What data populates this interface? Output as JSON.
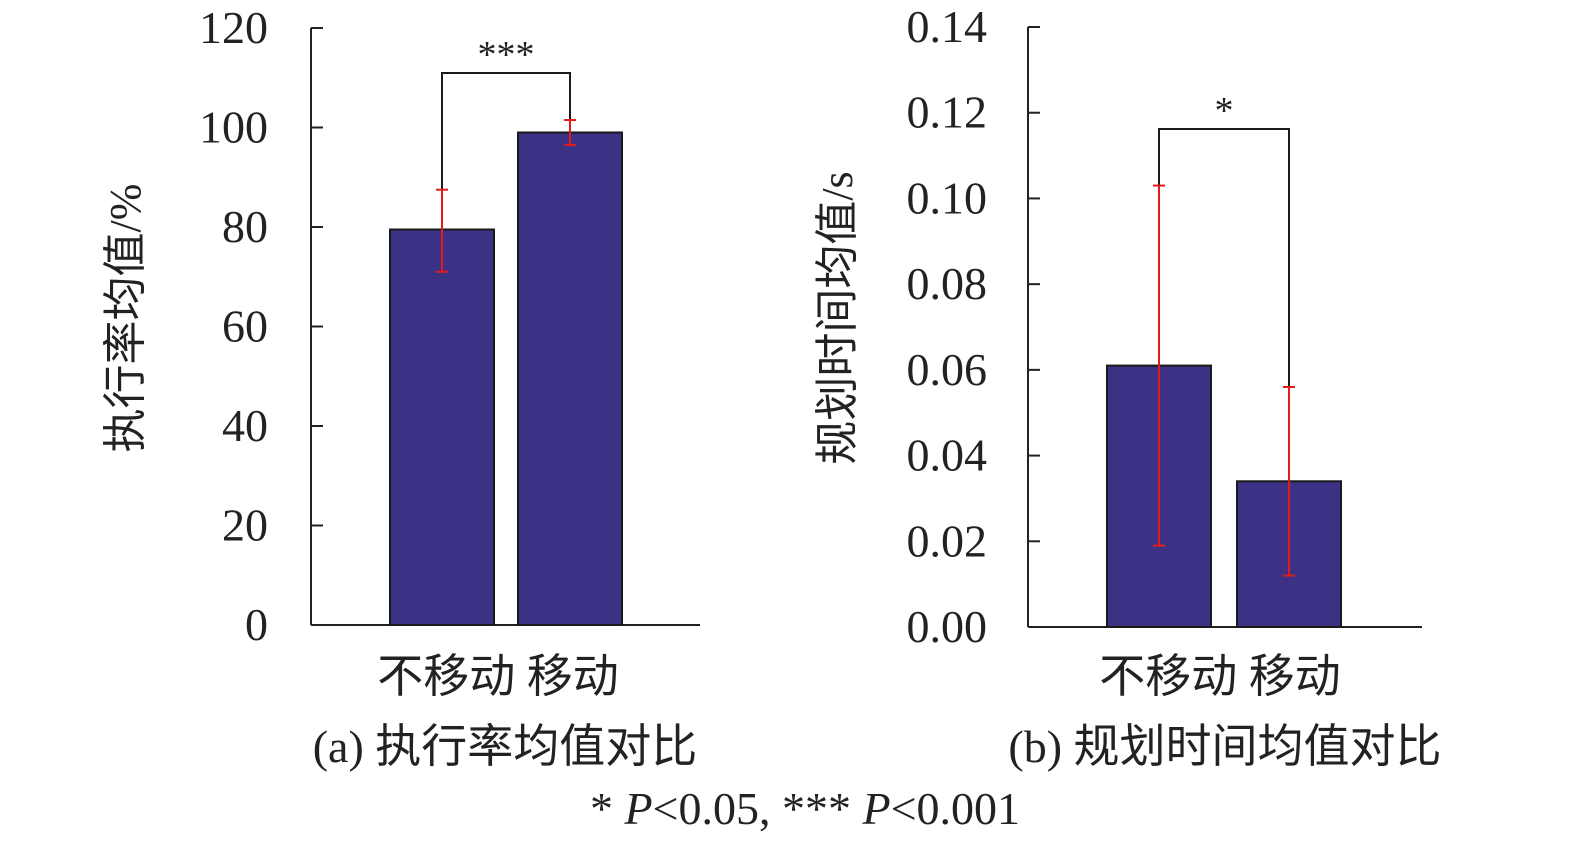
{
  "chart_data": [
    {
      "type": "bar",
      "caption": "(a) 执行率均值对比",
      "ylabel": "执行率均值/%",
      "categories": [
        "不移动",
        "移动"
      ],
      "category_label": "不移动 移动",
      "values": [
        79.5,
        99.0
      ],
      "error_low": [
        71.0,
        96.5
      ],
      "error_high": [
        87.5,
        101.5
      ],
      "ylim": [
        0,
        120
      ],
      "yticks": [
        "0",
        "20",
        "40",
        "60",
        "80",
        "100",
        "120"
      ],
      "significance": "***",
      "bar_color": "#3b3286",
      "error_color": "#e31a1c"
    },
    {
      "type": "bar",
      "caption": "(b) 规划时间均值对比",
      "ylabel": "规划时间均值/s",
      "categories": [
        "不移动",
        "移动"
      ],
      "category_label": "不移动 移动",
      "values": [
        0.061,
        0.034
      ],
      "error_low": [
        0.019,
        0.012
      ],
      "error_high": [
        0.103,
        0.056
      ],
      "ylim": [
        0,
        0.14
      ],
      "yticks": [
        "0.00",
        "0.02",
        "0.04",
        "0.06",
        "0.08",
        "0.10",
        "0.12",
        "0.14"
      ],
      "significance": "*",
      "bar_color": "#3b3286",
      "error_color": "#e31a1c"
    }
  ],
  "footnote": {
    "star1": "* ",
    "p1": "P",
    "v1": "<0.05, *** ",
    "p2": "P",
    "v2": "<0.001"
  }
}
